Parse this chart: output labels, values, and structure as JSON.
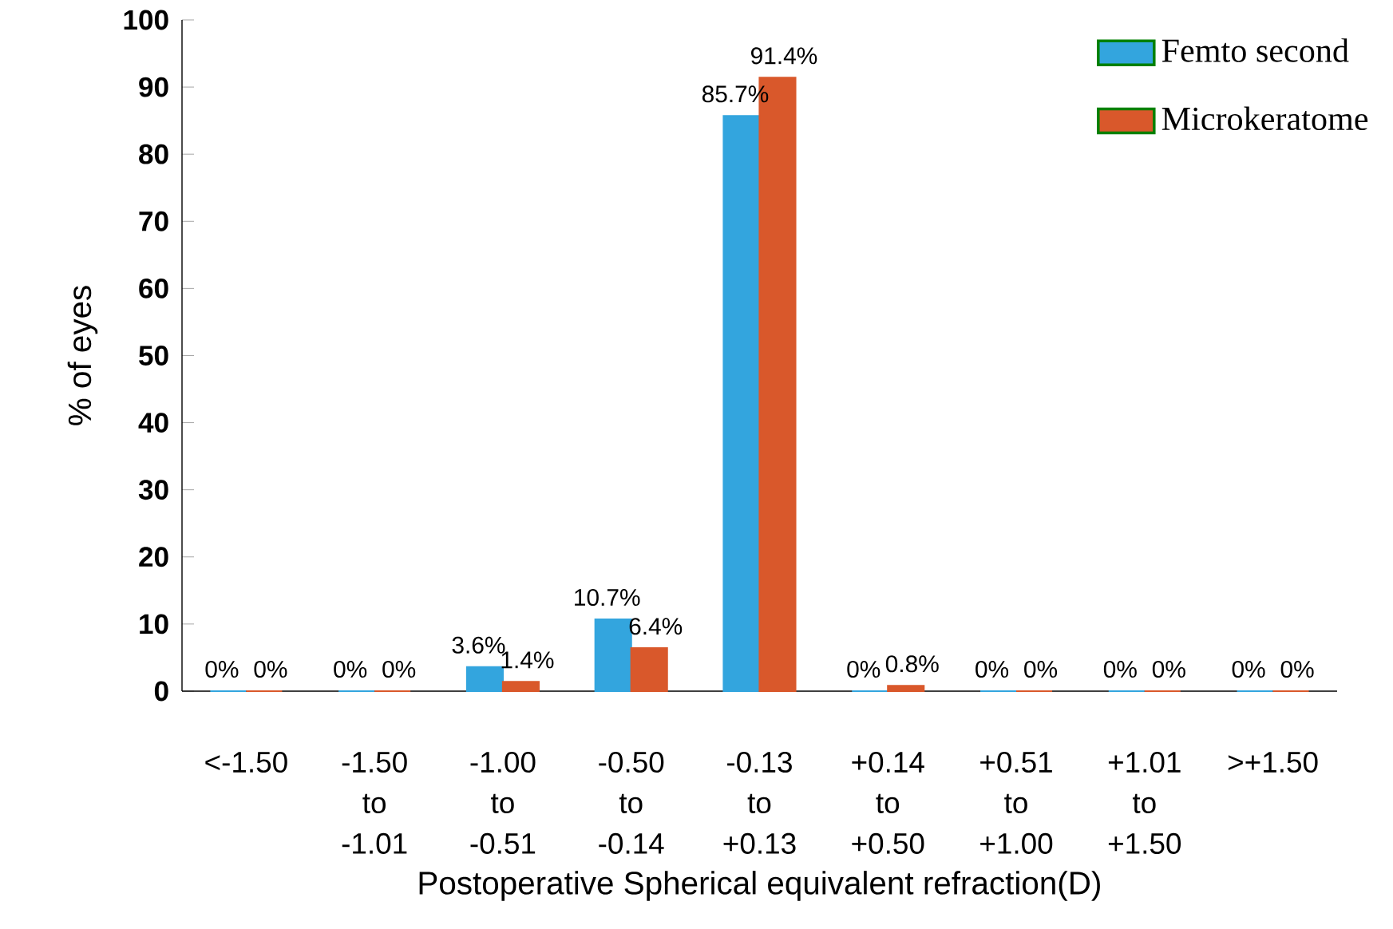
{
  "chart_data": {
    "type": "bar",
    "xlabel": "Postoperative Spherical equivalent refraction(D)",
    "ylabel": "% of eyes",
    "categories": [
      "<-1.50",
      "-1.50 to -1.01",
      "-1.00 to -0.51",
      "-0.50 to -0.14",
      "-0.13 to +0.13",
      "+0.14 to +0.50",
      "+0.51 to +1.00",
      "+1.01 to +1.50",
      ">+1.50"
    ],
    "series": [
      {
        "name": "Femto second",
        "color": "#33a5de",
        "values": [
          0,
          0,
          3.6,
          10.7,
          85.7,
          0,
          0,
          0,
          0
        ],
        "value_labels": [
          "0%",
          "0%",
          "3.6%",
          "10.7%",
          "85.7%",
          "0%",
          "0%",
          "0%",
          "0%"
        ]
      },
      {
        "name": "Microkeratome",
        "color": "#d9582b",
        "values": [
          0,
          0,
          1.4,
          6.4,
          91.4,
          0.8,
          0,
          0,
          0
        ],
        "value_labels": [
          "0%",
          "0%",
          "1.4%",
          "6.4%",
          "91.4%",
          "0.8%",
          "0%",
          "0%",
          "0%"
        ]
      }
    ],
    "ylim": [
      0,
      100
    ],
    "yticks": [
      0,
      10,
      20,
      30,
      40,
      50,
      60,
      70,
      80,
      90,
      100
    ],
    "legend": "top right"
  }
}
